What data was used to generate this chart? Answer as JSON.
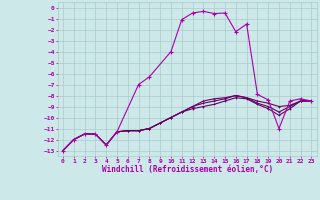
{
  "xlabel": "Windchill (Refroidissement éolien,°C)",
  "bg_color": "#cce8e8",
  "grid_color": "#aacccc",
  "line_color": "#aa00aa",
  "dark_line_color": "#660066",
  "xlim": [
    -0.5,
    23.5
  ],
  "ylim": [
    -13.5,
    0.5
  ],
  "xticks": [
    0,
    1,
    2,
    3,
    4,
    5,
    6,
    7,
    8,
    9,
    10,
    11,
    12,
    13,
    14,
    15,
    16,
    17,
    18,
    19,
    20,
    21,
    22,
    23
  ],
  "yticks": [
    0,
    -1,
    -2,
    -3,
    -4,
    -5,
    -6,
    -7,
    -8,
    -9,
    -10,
    -11,
    -12,
    -13
  ],
  "main_series_x": [
    0,
    1,
    2,
    3,
    4,
    5,
    7,
    8,
    10,
    11,
    12,
    13,
    14,
    15,
    16,
    17,
    18,
    19,
    20,
    21,
    22,
    23
  ],
  "main_series_y": [
    -13,
    -12,
    -11.5,
    -11.5,
    -12.5,
    -11.3,
    -7.0,
    -6.3,
    -4.0,
    -1.1,
    -0.5,
    -0.35,
    -0.55,
    -0.5,
    -2.2,
    -1.5,
    -7.9,
    -8.4,
    -11.0,
    -8.5,
    -8.3,
    -8.5
  ],
  "flat_series": [
    {
      "x": [
        0,
        1,
        2,
        3,
        4,
        5,
        6,
        7,
        8,
        9,
        10,
        11,
        12,
        13,
        14,
        15,
        16,
        17,
        18,
        19,
        20,
        21,
        22,
        23
      ],
      "y": [
        -13,
        -12,
        -11.5,
        -11.5,
        -12.5,
        -11.3,
        -11.2,
        -11.2,
        -11.0,
        -10.5,
        -10.0,
        -9.5,
        -9.0,
        -8.5,
        -8.3,
        -8.2,
        -8.0,
        -8.2,
        -8.5,
        -8.7,
        -9.0,
        -8.9,
        -8.5,
        -8.5
      ]
    },
    {
      "x": [
        0,
        1,
        2,
        3,
        4,
        5,
        6,
        7,
        8,
        9,
        10,
        11,
        12,
        13,
        14,
        15,
        16,
        17,
        18,
        19,
        20,
        21,
        22,
        23
      ],
      "y": [
        -13,
        -12,
        -11.5,
        -11.5,
        -12.5,
        -11.3,
        -11.2,
        -11.2,
        -11.0,
        -10.5,
        -10.0,
        -9.5,
        -9.0,
        -8.7,
        -8.5,
        -8.3,
        -8.0,
        -8.2,
        -8.7,
        -9.0,
        -9.5,
        -9.0,
        -8.5,
        -8.5
      ]
    },
    {
      "x": [
        0,
        1,
        2,
        3,
        4,
        5,
        6,
        7,
        8,
        9,
        10,
        11,
        12,
        13,
        14,
        15,
        16,
        17,
        18,
        19,
        20,
        21,
        22,
        23
      ],
      "y": [
        -13,
        -12,
        -11.5,
        -11.5,
        -12.5,
        -11.3,
        -11.2,
        -11.2,
        -11.0,
        -10.5,
        -10.0,
        -9.5,
        -9.2,
        -9.0,
        -8.8,
        -8.5,
        -8.2,
        -8.3,
        -8.8,
        -9.2,
        -9.8,
        -9.2,
        -8.5,
        -8.5
      ]
    }
  ],
  "marker": "+",
  "main_marker_size": 3.5,
  "flat_marker_size": 2.0,
  "line_width": 0.8,
  "xlabel_fontsize": 5.5,
  "tick_fontsize": 4.5
}
